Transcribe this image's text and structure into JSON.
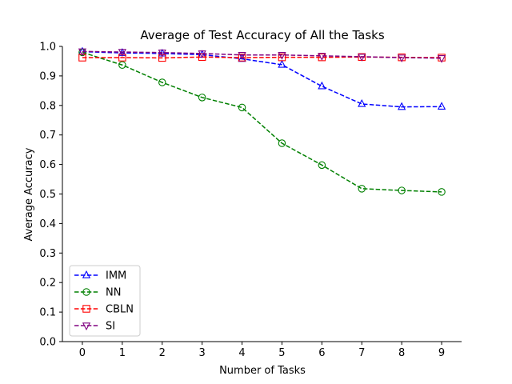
{
  "chart_data": {
    "type": "line",
    "title": "Average of Test Accuracy of All the Tasks",
    "xlabel": "Number of Tasks",
    "ylabel": "Average Accuracy",
    "x": [
      0,
      1,
      2,
      3,
      4,
      5,
      6,
      7,
      8,
      9
    ],
    "xlim": [
      -0.5,
      9.5
    ],
    "ylim": [
      0.0,
      1.0
    ],
    "x_ticks": [
      "0",
      "1",
      "2",
      "3",
      "4",
      "5",
      "6",
      "7",
      "8",
      "9"
    ],
    "y_ticks": [
      "0.0",
      "0.1",
      "0.2",
      "0.3",
      "0.4",
      "0.5",
      "0.6",
      "0.7",
      "0.8",
      "0.9",
      "1.0"
    ],
    "grid": false,
    "legend_position": "lower-left",
    "series": [
      {
        "name": "IMM",
        "color": "#0000ff",
        "marker": "triangle-up",
        "line": "dashed",
        "values": [
          0.982,
          0.978,
          0.976,
          0.972,
          0.958,
          0.938,
          0.865,
          0.805,
          0.795,
          0.796
        ]
      },
      {
        "name": "NN",
        "color": "#008000",
        "marker": "circle",
        "line": "dashed",
        "values": [
          0.98,
          0.937,
          0.878,
          0.827,
          0.793,
          0.672,
          0.598,
          0.518,
          0.512,
          0.507
        ]
      },
      {
        "name": "CBLN",
        "color": "#ff0000",
        "marker": "square",
        "line": "dashed",
        "values": [
          0.962,
          0.962,
          0.961,
          0.964,
          0.962,
          0.963,
          0.963,
          0.964,
          0.963,
          0.962
        ]
      },
      {
        "name": "SI",
        "color": "#800080",
        "marker": "triangle-down",
        "line": "dashed",
        "values": [
          0.983,
          0.981,
          0.979,
          0.976,
          0.971,
          0.971,
          0.968,
          0.965,
          0.962,
          0.96
        ]
      }
    ]
  }
}
